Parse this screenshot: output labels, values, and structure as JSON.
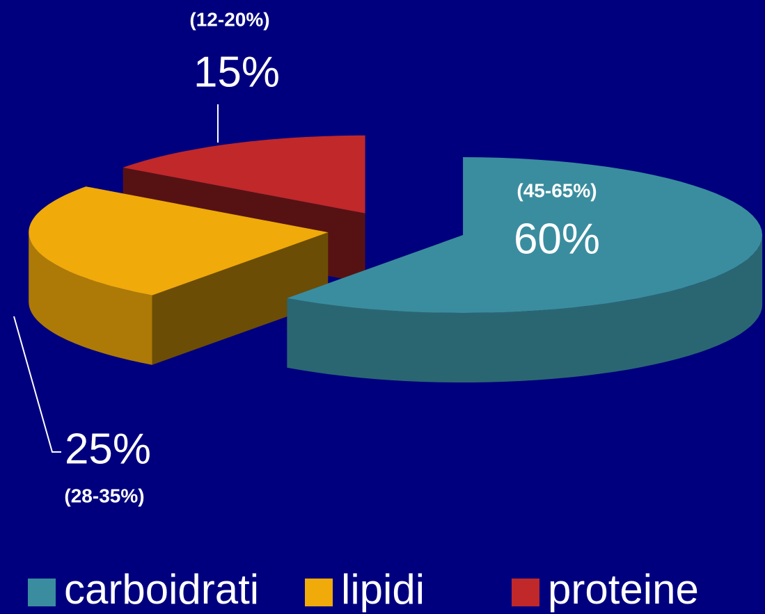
{
  "chart_data": {
    "type": "pie",
    "categories": [
      "carboidrati",
      "lipidi",
      "proteine"
    ],
    "values": [
      60,
      25,
      15
    ],
    "value_labels": [
      "60%",
      "25%",
      "15%"
    ],
    "ranges": [
      "(45-65%)",
      "(28-35%)",
      "(12-20%)"
    ],
    "colors": [
      "#3a8d9e",
      "#f0aa0a",
      "#c0282a"
    ],
    "legend": "bottom"
  }
}
